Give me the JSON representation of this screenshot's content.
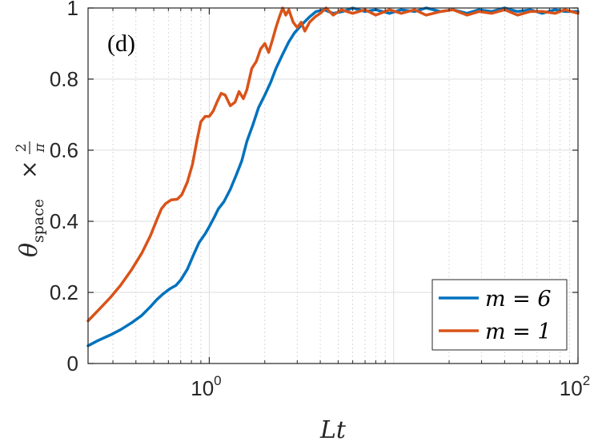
{
  "chart_data": {
    "type": "line",
    "panel_label": "(d)",
    "xlabel": "Lt",
    "ylabel": {
      "main": "θ",
      "subscript": "space",
      "times": "×",
      "frac_num": "2",
      "frac_den": "π"
    },
    "xscale": "log",
    "xlim": [
      0.22,
      100
    ],
    "ylim": [
      0,
      1
    ],
    "x_ticks": [
      {
        "value": 1,
        "base": "10",
        "exp": "0"
      },
      {
        "value": 100,
        "base": "10",
        "exp": "2"
      }
    ],
    "y_ticks": [
      {
        "value": 0,
        "label": "0"
      },
      {
        "value": 0.2,
        "label": "0.2"
      },
      {
        "value": 0.4,
        "label": "0.4"
      },
      {
        "value": 0.6,
        "label": "0.6"
      },
      {
        "value": 0.8,
        "label": "0.8"
      },
      {
        "value": 1,
        "label": "1"
      }
    ],
    "grid": true,
    "legend_position": "bottom-right",
    "series": [
      {
        "name": "m = 6",
        "color": "#0072BD",
        "points": [
          [
            0.22,
            0.05
          ],
          [
            0.25,
            0.065
          ],
          [
            0.29,
            0.08
          ],
          [
            0.33,
            0.095
          ],
          [
            0.38,
            0.115
          ],
          [
            0.43,
            0.135
          ],
          [
            0.48,
            0.16
          ],
          [
            0.52,
            0.18
          ],
          [
            0.56,
            0.195
          ],
          [
            0.61,
            0.21
          ],
          [
            0.66,
            0.22
          ],
          [
            0.7,
            0.235
          ],
          [
            0.76,
            0.265
          ],
          [
            0.82,
            0.305
          ],
          [
            0.88,
            0.34
          ],
          [
            0.95,
            0.365
          ],
          [
            1.0,
            0.385
          ],
          [
            1.06,
            0.41
          ],
          [
            1.12,
            0.435
          ],
          [
            1.2,
            0.455
          ],
          [
            1.3,
            0.49
          ],
          [
            1.4,
            0.53
          ],
          [
            1.5,
            0.57
          ],
          [
            1.6,
            0.625
          ],
          [
            1.72,
            0.67
          ],
          [
            1.85,
            0.72
          ],
          [
            2.0,
            0.755
          ],
          [
            2.15,
            0.79
          ],
          [
            2.3,
            0.83
          ],
          [
            2.5,
            0.87
          ],
          [
            2.7,
            0.905
          ],
          [
            2.9,
            0.93
          ],
          [
            3.2,
            0.955
          ],
          [
            3.5,
            0.975
          ],
          [
            3.8,
            0.99
          ],
          [
            4.2,
            0.995
          ],
          [
            4.7,
            0.985
          ],
          [
            5.3,
            0.99
          ],
          [
            6.0,
            1.0
          ],
          [
            7.0,
            0.99
          ],
          [
            8.0,
            0.995
          ],
          [
            9.5,
            0.985
          ],
          [
            11,
            0.995
          ],
          [
            13,
            0.99
          ],
          [
            15,
            1.0
          ],
          [
            18,
            0.99
          ],
          [
            21,
            0.995
          ],
          [
            25,
            0.985
          ],
          [
            29,
            0.995
          ],
          [
            34,
            0.99
          ],
          [
            40,
            1.0
          ],
          [
            47,
            0.99
          ],
          [
            55,
            0.995
          ],
          [
            64,
            0.985
          ],
          [
            75,
            0.995
          ],
          [
            85,
            0.99
          ],
          [
            100,
            0.99
          ]
        ]
      },
      {
        "name": "m = 1",
        "color": "#D95319",
        "points": [
          [
            0.22,
            0.12
          ],
          [
            0.25,
            0.15
          ],
          [
            0.29,
            0.185
          ],
          [
            0.33,
            0.22
          ],
          [
            0.38,
            0.265
          ],
          [
            0.43,
            0.31
          ],
          [
            0.48,
            0.36
          ],
          [
            0.52,
            0.405
          ],
          [
            0.55,
            0.435
          ],
          [
            0.58,
            0.45
          ],
          [
            0.62,
            0.46
          ],
          [
            0.67,
            0.462
          ],
          [
            0.71,
            0.475
          ],
          [
            0.76,
            0.51
          ],
          [
            0.81,
            0.56
          ],
          [
            0.86,
            0.63
          ],
          [
            0.9,
            0.68
          ],
          [
            0.95,
            0.695
          ],
          [
            1.0,
            0.695
          ],
          [
            1.05,
            0.71
          ],
          [
            1.1,
            0.735
          ],
          [
            1.16,
            0.76
          ],
          [
            1.22,
            0.755
          ],
          [
            1.3,
            0.725
          ],
          [
            1.38,
            0.735
          ],
          [
            1.45,
            0.765
          ],
          [
            1.53,
            0.745
          ],
          [
            1.6,
            0.77
          ],
          [
            1.7,
            0.83
          ],
          [
            1.8,
            0.85
          ],
          [
            1.9,
            0.885
          ],
          [
            2.0,
            0.9
          ],
          [
            2.1,
            0.875
          ],
          [
            2.2,
            0.91
          ],
          [
            2.3,
            0.945
          ],
          [
            2.4,
            0.975
          ],
          [
            2.5,
            1.0
          ],
          [
            2.6,
            0.98
          ],
          [
            2.7,
            0.995
          ],
          [
            2.85,
            0.96
          ],
          [
            3.0,
            0.945
          ],
          [
            3.15,
            0.96
          ],
          [
            3.3,
            0.935
          ],
          [
            3.5,
            0.96
          ],
          [
            3.75,
            0.975
          ],
          [
            4.0,
            0.985
          ],
          [
            4.3,
            1.0
          ],
          [
            4.7,
            0.98
          ],
          [
            5.2,
            0.995
          ],
          [
            6.0,
            0.985
          ],
          [
            7.0,
            0.995
          ],
          [
            8.0,
            0.98
          ],
          [
            9.5,
            0.995
          ],
          [
            11,
            0.985
          ],
          [
            13,
            0.995
          ],
          [
            15,
            0.98
          ],
          [
            18,
            0.99
          ],
          [
            21,
            0.995
          ],
          [
            25,
            0.98
          ],
          [
            29,
            0.99
          ],
          [
            34,
            0.985
          ],
          [
            40,
            0.995
          ],
          [
            47,
            0.98
          ],
          [
            55,
            0.99
          ],
          [
            64,
            0.99
          ],
          [
            75,
            0.985
          ],
          [
            85,
            0.995
          ],
          [
            100,
            0.985
          ]
        ]
      }
    ]
  }
}
